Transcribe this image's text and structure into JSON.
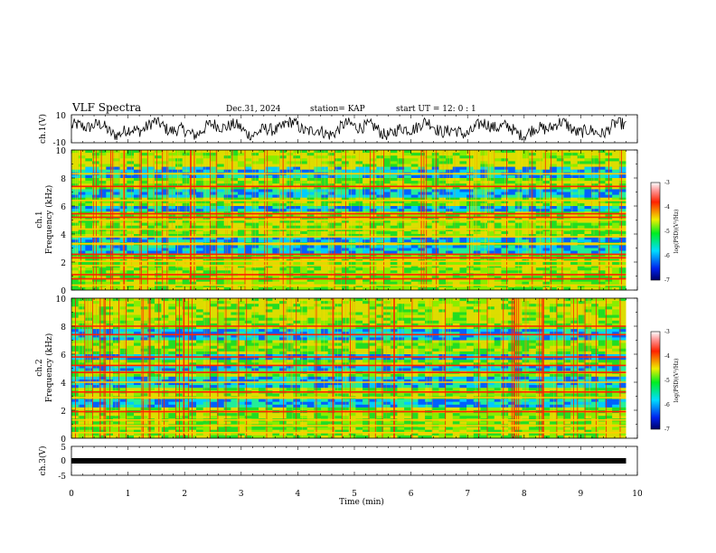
{
  "header": {
    "title": "VLF Spectra",
    "date": "Dec.31, 2024",
    "station": "station= KAP",
    "start_ut": "start  UT =   12: 0  : 1"
  },
  "chart_data": [
    {
      "type": "line",
      "id": "ch1-waveform",
      "ylabel": "ch.1(V)",
      "ylim": [
        -10,
        10
      ],
      "yticks": [
        10,
        -10
      ],
      "xlim": [
        0,
        10
      ],
      "trace_color": "#000000",
      "trace_span_min": [
        0,
        9.8
      ]
    },
    {
      "type": "heatmap",
      "id": "ch1-spectrogram",
      "ylabel_top": "ch.1",
      "ylabel": "Frequency  (kHz)",
      "ylim": [
        0,
        10
      ],
      "yticks": [
        0,
        2,
        4,
        6,
        8,
        10
      ],
      "xlim": [
        0,
        10
      ],
      "data_span_min": [
        0,
        9.8
      ],
      "strong_bands_khz": [
        0.35,
        0.8,
        1.1,
        1.75,
        2.05,
        2.3,
        2.55,
        3.3,
        3.8,
        4.35,
        5.0,
        5.2,
        5.45,
        6.4,
        7.4,
        8.3
      ],
      "blue_bands_khz": [
        [
          2.6,
          3.2
        ],
        [
          3.4,
          3.8
        ],
        [
          5.6,
          6.0
        ],
        [
          6.6,
          7.2
        ],
        [
          8.0,
          8.8
        ]
      ],
      "colorbar": {
        "label": "log(PSD)(V²/Hz)",
        "range": [
          -7,
          -3
        ],
        "ticks": [
          "-3",
          "-4",
          "-5",
          "-6",
          "-7"
        ]
      }
    },
    {
      "type": "heatmap",
      "id": "ch2-spectrogram",
      "ylabel_top": "ch.2",
      "ylabel": "Frequency  (kHz)",
      "ylim": [
        0,
        10
      ],
      "yticks": [
        0,
        2,
        4,
        6,
        8,
        10
      ],
      "xlim": [
        0,
        10
      ],
      "data_span_min": [
        0,
        9.8
      ],
      "strong_bands_khz": [
        0.4,
        0.9,
        1.3,
        1.9,
        2.9,
        3.3,
        4.0,
        4.7,
        5.2,
        5.8,
        7.4,
        8.0
      ],
      "blue_bands_khz": [
        [
          2.2,
          2.8
        ],
        [
          3.6,
          4.4
        ],
        [
          4.8,
          5.2
        ],
        [
          5.6,
          6.0
        ],
        [
          7.0,
          7.8
        ]
      ],
      "colorbar": {
        "label": "log(PSD)(V²/Hz)",
        "range": [
          -7,
          -3
        ],
        "ticks": [
          "-3",
          "-4",
          "-5",
          "-6",
          "-7"
        ]
      }
    },
    {
      "type": "line",
      "id": "ch3-waveform",
      "ylabel": "ch.3(V)",
      "ylim": [
        -5,
        5
      ],
      "yticks": [
        "5",
        "0",
        "-5"
      ],
      "xlim": [
        0,
        10
      ],
      "xlabel": "Time  (min)",
      "xticks": [
        "0",
        "1",
        "2",
        "3",
        "4",
        "5",
        "6",
        "7",
        "8",
        "9",
        "10"
      ],
      "trace_level_v": 0,
      "trace_span_min": [
        0,
        9.8
      ],
      "trace_color": "#000000"
    }
  ]
}
